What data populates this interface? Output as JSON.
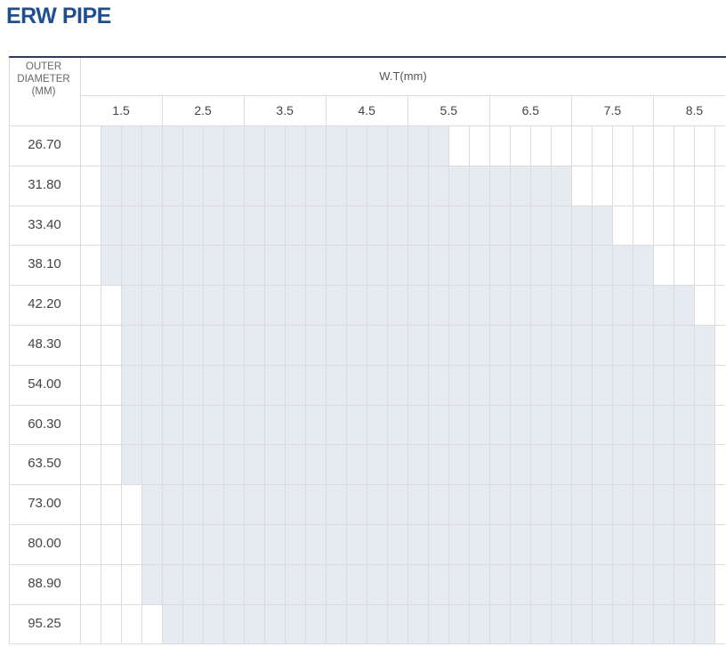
{
  "title": "ERW PIPE",
  "table": {
    "od_header": [
      "OUTER",
      "DIAMETER",
      "(MM)"
    ],
    "wt_header": "W.T(mm)",
    "wt_labels": [
      "1.5",
      "2.5",
      "3.5",
      "4.5",
      "5.5",
      "6.5",
      "7.5",
      "8.5"
    ],
    "rows": [
      {
        "od": "26.70",
        "available_cols": [
          2,
          18
        ]
      },
      {
        "od": "31.80",
        "available_cols": [
          2,
          24
        ]
      },
      {
        "od": "33.40",
        "available_cols": [
          2,
          26
        ]
      },
      {
        "od": "38.10",
        "available_cols": [
          2,
          28
        ]
      },
      {
        "od": "42.20",
        "available_cols": [
          3,
          30
        ]
      },
      {
        "od": "48.30",
        "available_cols": [
          3,
          31
        ]
      },
      {
        "od": "54.00",
        "available_cols": [
          3,
          31
        ]
      },
      {
        "od": "60.30",
        "available_cols": [
          3,
          31
        ]
      },
      {
        "od": "63.50",
        "available_cols": [
          3,
          31
        ]
      },
      {
        "od": "73.00",
        "available_cols": [
          4,
          31
        ]
      },
      {
        "od": "80.00",
        "available_cols": [
          4,
          31
        ]
      },
      {
        "od": "88.90",
        "available_cols": [
          4,
          31
        ]
      },
      {
        "od": "95.25",
        "available_cols": [
          5,
          31
        ]
      }
    ],
    "colors": {
      "title": "#1f4f8e",
      "header_rule": "#2b3e5c",
      "available_fill": "#e6eaf1",
      "grid": "#dcdcdc"
    }
  }
}
